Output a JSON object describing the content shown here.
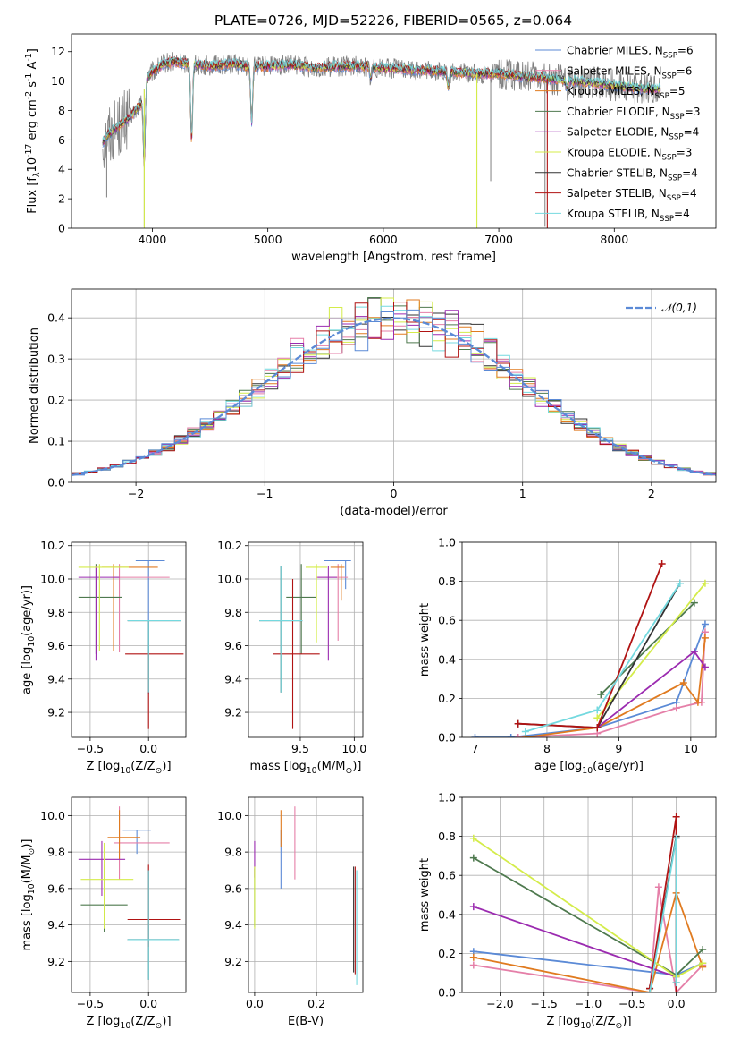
{
  "figure_title": "PLATE=0726, MJD=52226, FIBERID=0565, z=0.064",
  "models": [
    {
      "name": "Chabrier MILES, N$_{SSP}$=6",
      "color": "#5b8ad6"
    },
    {
      "name": "Salpeter MILES, N$_{SSP}$=6",
      "color": "#e57fa8"
    },
    {
      "name": "Kroupa MILES, N$_{SSP}$=5",
      "color": "#e07b20"
    },
    {
      "name": "Chabrier ELODIE, N$_{SSP}$=3",
      "color": "#4f7a4f"
    },
    {
      "name": "Salpeter ELODIE, N$_{SSP}$=4",
      "color": "#9b2bb0"
    },
    {
      "name": "Kroupa ELODIE, N$_{SSP}$=3",
      "color": "#d4ec4a"
    },
    {
      "name": "Chabrier STELIB, N$_{SSP}$=4",
      "color": "#333333"
    },
    {
      "name": "Salpeter STELIB, N$_{SSP}$=4",
      "color": "#b01313"
    },
    {
      "name": "Kroupa STELIB, N$_{SSP}$=4",
      "color": "#74d9df"
    }
  ],
  "chart_data": [
    {
      "id": "spectrum",
      "type": "line",
      "xlabel": "wavelength [Angstrom, rest frame]",
      "ylabel": "Flux [f$_\\lambda$10$^{-17}$ erg cm$^{-2}$ s$^{-1}$ A$^{-1}$]",
      "xlim": [
        3300,
        8880
      ],
      "ylim": [
        0,
        13.2
      ],
      "xticks": [
        4000,
        5000,
        6000,
        7000,
        8000
      ],
      "yticks": [
        0,
        2,
        4,
        6,
        8,
        10,
        12
      ],
      "grid": false,
      "legend": "right",
      "data_color": "#808080",
      "continuum": {
        "x": [
          3570,
          3620,
          3700,
          3800,
          3900,
          3950,
          4000,
          4100,
          4200,
          4300,
          4400,
          4500,
          4600,
          4700,
          4800,
          4900,
          5000,
          5200,
          5400,
          5600,
          5800,
          6000,
          6200,
          6400,
          6600,
          6800,
          7000,
          7200,
          7400,
          7600,
          7800,
          8000,
          8200,
          8400
        ],
        "y": [
          5.8,
          6.4,
          6.9,
          7.5,
          8.4,
          10.2,
          10.6,
          11.2,
          11.3,
          11.2,
          11.1,
          11.0,
          11.1,
          11.2,
          11.0,
          11.0,
          11.0,
          11.1,
          10.9,
          11.0,
          11.0,
          10.9,
          10.8,
          10.7,
          10.6,
          10.5,
          10.5,
          10.3,
          10.2,
          10.0,
          9.9,
          9.7,
          9.5,
          9.5
        ]
      },
      "dips": [
        {
          "x": 3930,
          "y": 4.3
        },
        {
          "x": 4340,
          "y": 6.0
        },
        {
          "x": 4860,
          "y": 7.2
        },
        {
          "x": 5890,
          "y": 10.2
        },
        {
          "x": 6563,
          "y": 9.6
        },
        {
          "x": 7590,
          "y": 9.6
        }
      ],
      "data_spikes": [
        {
          "x": 3605,
          "y": 2.1
        },
        {
          "x": 3930,
          "y": 0.1
        },
        {
          "x": 6810,
          "y": 0.1
        },
        {
          "x": 7400,
          "y": 0.1
        },
        {
          "x": 6930,
          "y": 3.2
        }
      ]
    },
    {
      "id": "residuals",
      "type": "histogram",
      "xlabel": "(data-model)/error",
      "ylabel": "Normed distribution",
      "xlim": [
        -2.5,
        2.5
      ],
      "ylim": [
        0,
        0.47
      ],
      "xticks": [
        -2,
        -1,
        0,
        1,
        2
      ],
      "yticks": [
        0.0,
        0.1,
        0.2,
        0.3,
        0.4
      ],
      "grid": true,
      "legend": "top-right",
      "reference_curve": {
        "label": "$\\mathcal{N}(0,1)$",
        "color": "#5b8ad6",
        "style": "dashed"
      },
      "bins": 50
    },
    {
      "id": "age_vs_Z",
      "type": "errorbar",
      "xlabel": "Z [log$_{10}$(Z/Z$_\\odot$)]",
      "ylabel": "age  [log$_{10}$(age/yr)]",
      "xlim": [
        -0.66,
        0.32
      ],
      "ylim": [
        9.05,
        10.22
      ],
      "xticks": [
        -0.5,
        0.0
      ],
      "yticks": [
        9.2,
        9.4,
        9.6,
        9.8,
        10.0,
        10.2
      ],
      "grid": true,
      "points": [
        {
          "model": 0,
          "x": 0.0,
          "y": 10.11,
          "xerr": [
            0.11,
            0.14
          ],
          "yerr": [
            0.8,
            0.0
          ]
        },
        {
          "model": 1,
          "x": -0.25,
          "y": 10.01,
          "xerr": [
            0.05,
            0.43
          ],
          "yerr": [
            0.45,
            0.08
          ]
        },
        {
          "model": 2,
          "x": -0.3,
          "y": 10.07,
          "xerr": [
            0.1,
            0.38
          ],
          "yerr": [
            0.5,
            0.02
          ]
        },
        {
          "model": 3,
          "x": -0.45,
          "y": 9.89,
          "xerr": [
            0.15,
            0.22
          ],
          "yerr": [
            0.34,
            0.2
          ]
        },
        {
          "model": 4,
          "x": -0.45,
          "y": 10.01,
          "xerr": [
            0.15,
            0.2
          ],
          "yerr": [
            0.5,
            0.07
          ]
        },
        {
          "model": 5,
          "x": -0.42,
          "y": 10.07,
          "xerr": [
            0.18,
            0.25
          ],
          "yerr": [
            0.5,
            0.02
          ]
        },
        {
          "model": 6,
          "x": 0.0,
          "y": 9.75,
          "xerr": [
            0.18,
            0.28
          ],
          "yerr": [
            0.43,
            0.0
          ]
        },
        {
          "model": 7,
          "x": 0.0,
          "y": 9.55,
          "xerr": [
            0.2,
            0.3
          ],
          "yerr": [
            0.45,
            0.0
          ]
        },
        {
          "model": 8,
          "x": 0.0,
          "y": 9.75,
          "xerr": [
            0.18,
            0.28
          ],
          "yerr": [
            0.43,
            0.0
          ]
        }
      ]
    },
    {
      "id": "age_vs_mass",
      "type": "errorbar",
      "xlabel": "mass [log$_{10}$(M/M$_\\odot$)]",
      "ylabel": "",
      "xlim": [
        9.02,
        10.08
      ],
      "ylim": [
        9.05,
        10.22
      ],
      "xticks": [
        9.5,
        10.0
      ],
      "yticks": [
        9.2,
        9.4,
        9.6,
        9.8,
        10.0,
        10.2
      ],
      "grid": true,
      "points": [
        {
          "model": 0,
          "x": 9.92,
          "y": 10.11,
          "xerr": [
            0.2,
            0.05
          ],
          "yerr": [
            0.17,
            0.0
          ]
        },
        {
          "model": 1,
          "x": 9.85,
          "y": 10.01,
          "xerr": [
            0.2,
            0.09
          ],
          "yerr": [
            0.38,
            0.08
          ]
        },
        {
          "model": 2,
          "x": 9.88,
          "y": 10.07,
          "xerr": [
            0.1,
            0.03
          ],
          "yerr": [
            0.2,
            0.02
          ]
        },
        {
          "model": 3,
          "x": 9.51,
          "y": 9.89,
          "xerr": [
            0.14,
            0.14
          ],
          "yerr": [
            0.34,
            0.2
          ]
        },
        {
          "model": 4,
          "x": 9.76,
          "y": 10.01,
          "xerr": [
            0.1,
            0.08
          ],
          "yerr": [
            0.5,
            0.07
          ]
        },
        {
          "model": 5,
          "x": 9.65,
          "y": 10.07,
          "xerr": [
            0.1,
            0.1
          ],
          "yerr": [
            0.45,
            0.02
          ]
        },
        {
          "model": 6,
          "x": 9.32,
          "y": 9.75,
          "xerr": [
            0.2,
            0.2
          ],
          "yerr": [
            0.43,
            0.33
          ]
        },
        {
          "model": 7,
          "x": 9.43,
          "y": 9.55,
          "xerr": [
            0.18,
            0.25
          ],
          "yerr": [
            0.45,
            0.45
          ]
        },
        {
          "model": 8,
          "x": 9.32,
          "y": 9.75,
          "xerr": [
            0.2,
            0.2
          ],
          "yerr": [
            0.43,
            0.33
          ]
        }
      ]
    },
    {
      "id": "weights_vs_age",
      "type": "line",
      "xlabel": "age  [log$_{10}$(age/yr)]",
      "ylabel": "mass weight",
      "xlim": [
        6.82,
        10.35
      ],
      "ylim": [
        0,
        1
      ],
      "xticks": [
        7,
        8,
        9,
        10
      ],
      "yticks": [
        0.0,
        0.2,
        0.4,
        0.6,
        0.8,
        1.0
      ],
      "grid": true,
      "series": [
        {
          "model": 0,
          "x": [
            7.0,
            7.5,
            8.7,
            9.8,
            10.2
          ],
          "y": [
            0.0,
            0.0,
            0.05,
            0.18,
            0.58
          ]
        },
        {
          "model": 1,
          "x": [
            7.6,
            8.7,
            9.8,
            10.15,
            10.2
          ],
          "y": [
            0.0,
            0.02,
            0.15,
            0.18,
            0.54
          ]
        },
        {
          "model": 2,
          "x": [
            7.7,
            8.7,
            9.9,
            10.1,
            10.2
          ],
          "y": [
            0.0,
            0.05,
            0.28,
            0.18,
            0.51
          ]
        },
        {
          "model": 3,
          "x": [
            8.75,
            10.05
          ],
          "y": [
            0.22,
            0.69
          ]
        },
        {
          "model": 4,
          "x": [
            8.7,
            10.05,
            10.2
          ],
          "y": [
            0.05,
            0.44,
            0.36
          ]
        },
        {
          "model": 5,
          "x": [
            8.7,
            10.2
          ],
          "y": [
            0.1,
            0.79
          ]
        },
        {
          "model": 6,
          "x": [
            7.6,
            8.7,
            9.85
          ],
          "y": [
            0.07,
            0.05,
            0.79
          ]
        },
        {
          "model": 7,
          "x": [
            7.6,
            8.7,
            9.6
          ],
          "y": [
            0.07,
            0.05,
            0.89
          ]
        },
        {
          "model": 8,
          "x": [
            7.7,
            8.7,
            9.85
          ],
          "y": [
            0.03,
            0.14,
            0.79
          ]
        }
      ]
    },
    {
      "id": "mass_vs_Z",
      "type": "errorbar",
      "xlabel": "Z [log$_{10}$(Z/Z$_\\odot$)]",
      "ylabel": "mass [log$_{10}$(M/M$_\\odot$)]",
      "xlim": [
        -0.66,
        0.32
      ],
      "ylim": [
        9.03,
        10.1
      ],
      "xticks": [
        -0.5,
        0.0
      ],
      "yticks": [
        9.2,
        9.4,
        9.6,
        9.8,
        10.0
      ],
      "grid": true,
      "points": [
        {
          "model": 0,
          "x": -0.1,
          "y": 9.92,
          "xerr": [
            0.12,
            0.12
          ],
          "yerr": [
            0.13,
            0.0
          ]
        },
        {
          "model": 1,
          "x": -0.25,
          "y": 9.85,
          "xerr": [
            0.05,
            0.43
          ],
          "yerr": [
            0.2,
            0.2
          ]
        },
        {
          "model": 2,
          "x": -0.25,
          "y": 9.88,
          "xerr": [
            0.1,
            0.18
          ],
          "yerr": [
            0.12,
            0.15
          ]
        },
        {
          "model": 3,
          "x": -0.38,
          "y": 9.51,
          "xerr": [
            0.2,
            0.2
          ],
          "yerr": [
            0.15,
            0.22
          ]
        },
        {
          "model": 4,
          "x": -0.4,
          "y": 9.76,
          "xerr": [
            0.2,
            0.2
          ],
          "yerr": [
            0.2,
            0.1
          ]
        },
        {
          "model": 5,
          "x": -0.38,
          "y": 9.65,
          "xerr": [
            0.2,
            0.25
          ],
          "yerr": [
            0.27,
            0.2
          ]
        },
        {
          "model": 6,
          "x": 0.0,
          "y": 9.32,
          "xerr": [
            0.18,
            0.26
          ],
          "yerr": [
            0.22,
            0.38
          ]
        },
        {
          "model": 7,
          "x": 0.0,
          "y": 9.43,
          "xerr": [
            0.18,
            0.27
          ],
          "yerr": [
            0.15,
            0.3
          ]
        },
        {
          "model": 8,
          "x": 0.0,
          "y": 9.32,
          "xerr": [
            0.18,
            0.26
          ],
          "yerr": [
            0.22,
            0.38
          ]
        }
      ]
    },
    {
      "id": "mass_vs_ebv",
      "type": "errorbar",
      "xlabel": "E(B-V)",
      "ylabel": "",
      "xlim": [
        -0.02,
        0.35
      ],
      "ylim": [
        9.03,
        10.1
      ],
      "xticks": [
        0.0,
        0.2
      ],
      "yticks": [
        9.2,
        9.4,
        9.6,
        9.8,
        10.0
      ],
      "grid": true,
      "points": [
        {
          "model": 0,
          "x": 0.085,
          "y": 9.92,
          "xerr": [
            0,
            0
          ],
          "yerr": [
            0.32,
            0.0
          ]
        },
        {
          "model": 1,
          "x": 0.13,
          "y": 9.85,
          "xerr": [
            0,
            0
          ],
          "yerr": [
            0.2,
            0.2
          ]
        },
        {
          "model": 2,
          "x": 0.085,
          "y": 9.88,
          "xerr": [
            0,
            0
          ],
          "yerr": [
            0.05,
            0.15
          ]
        },
        {
          "model": 3,
          "x": 0.0,
          "y": 9.51,
          "xerr": [
            0,
            0
          ],
          "yerr": [
            0.12,
            0.2
          ]
        },
        {
          "model": 4,
          "x": 0.0,
          "y": 9.76,
          "xerr": [
            0,
            0
          ],
          "yerr": [
            0.1,
            0.1
          ]
        },
        {
          "model": 5,
          "x": 0.0,
          "y": 9.65,
          "xerr": [
            0,
            0
          ],
          "yerr": [
            0.27,
            0.07
          ]
        },
        {
          "model": 6,
          "x": 0.32,
          "y": 9.32,
          "xerr": [
            0,
            0
          ],
          "yerr": [
            0.18,
            0.4
          ]
        },
        {
          "model": 7,
          "x": 0.325,
          "y": 9.43,
          "xerr": [
            0,
            0
          ],
          "yerr": [
            0.3,
            0.29
          ]
        },
        {
          "model": 8,
          "x": 0.33,
          "y": 9.32,
          "xerr": [
            0,
            0
          ],
          "yerr": [
            0.25,
            0.38
          ]
        }
      ]
    },
    {
      "id": "weights_vs_Z",
      "type": "line",
      "xlabel": "Z [log$_{10}$(Z/Z$_\\odot$)]",
      "ylabel": "mass weight",
      "xlim": [
        -2.43,
        0.45
      ],
      "ylim": [
        0,
        1
      ],
      "xticks": [
        -2.0,
        -1.5,
        -1.0,
        -0.5,
        0.0
      ],
      "yticks": [
        0.0,
        0.2,
        0.4,
        0.6,
        0.8,
        1.0
      ],
      "grid": true,
      "series": [
        {
          "model": 0,
          "x": [
            -2.3,
            0.0,
            0.3
          ],
          "y": [
            0.21,
            0.09,
            0.15
          ]
        },
        {
          "model": 1,
          "x": [
            -2.3,
            -0.3,
            -0.2,
            0.0,
            0.3
          ],
          "y": [
            0.14,
            0.0,
            0.54,
            0.0,
            0.14
          ]
        },
        {
          "model": 2,
          "x": [
            -2.3,
            -0.3,
            0.0,
            0.3
          ],
          "y": [
            0.18,
            0.0,
            0.51,
            0.13
          ]
        },
        {
          "model": 3,
          "x": [
            -2.3,
            0.0,
            0.3
          ],
          "y": [
            0.69,
            0.09,
            0.22
          ]
        },
        {
          "model": 4,
          "x": [
            -2.3,
            0.0
          ],
          "y": [
            0.44,
            0.08
          ]
        },
        {
          "model": 5,
          "x": [
            -2.3,
            0.0,
            0.3
          ],
          "y": [
            0.79,
            0.08,
            0.15
          ]
        },
        {
          "model": 6,
          "x": [
            -0.3,
            0.0,
            0.0
          ],
          "y": [
            0.02,
            0.8,
            0.05
          ]
        },
        {
          "model": 7,
          "x": [
            -0.3,
            0.0,
            0.0
          ],
          "y": [
            0.02,
            0.9,
            0.0
          ]
        },
        {
          "model": 8,
          "x": [
            -0.3,
            0.0,
            0.0
          ],
          "y": [
            0.0,
            0.79,
            0.05
          ]
        }
      ]
    }
  ]
}
